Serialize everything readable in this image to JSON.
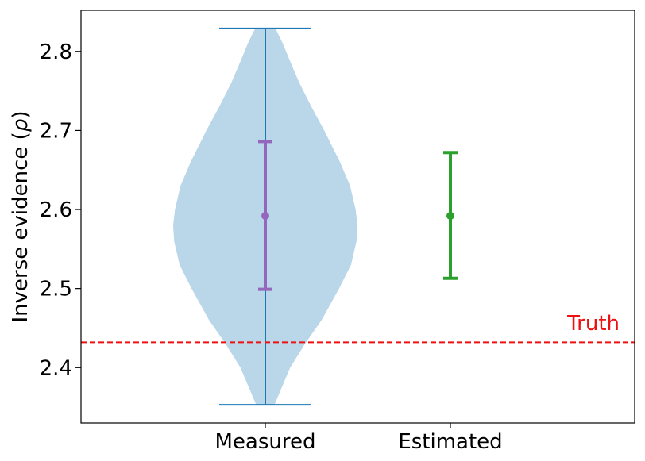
{
  "chart_data": {
    "type": "violin",
    "ylabel_main": "Inverse evidence (",
    "ylabel_symbol": "ρ",
    "ylabel_close": ")",
    "categories": [
      "Measured",
      "Estimated"
    ],
    "ylim": [
      2.33,
      2.852
    ],
    "yticks": [
      "2.4",
      "2.5",
      "2.6",
      "2.7",
      "2.8"
    ],
    "ytick_values": [
      2.4,
      2.5,
      2.6,
      2.7,
      2.8
    ],
    "grid": false,
    "violin": {
      "category": "Measured",
      "min": 2.353,
      "max": 2.829,
      "color": "#1f77b4",
      "fill_color": "#bad6e9",
      "density_half_width": [
        [
          2.353,
          0.1
        ],
        [
          2.37,
          0.16
        ],
        [
          2.4,
          0.27
        ],
        [
          2.43,
          0.43
        ],
        [
          2.46,
          0.61
        ],
        [
          2.5,
          0.8
        ],
        [
          2.53,
          0.93
        ],
        [
          2.56,
          0.99
        ],
        [
          2.58,
          1.0
        ],
        [
          2.6,
          0.98
        ],
        [
          2.63,
          0.92
        ],
        [
          2.66,
          0.81
        ],
        [
          2.7,
          0.64
        ],
        [
          2.73,
          0.5
        ],
        [
          2.76,
          0.37
        ],
        [
          2.79,
          0.26
        ],
        [
          2.81,
          0.19
        ],
        [
          2.829,
          0.11
        ]
      ]
    },
    "series": [
      {
        "category": "Measured",
        "mean": 2.592,
        "lower": 2.499,
        "upper": 2.686,
        "color": "#9467bd"
      },
      {
        "category": "Estimated",
        "mean": 2.592,
        "lower": 2.513,
        "upper": 2.672,
        "color": "#2ca02c"
      }
    ],
    "reference_line": {
      "label": "Truth",
      "value": 2.432,
      "color": "#ee1111",
      "style": "dashed"
    }
  }
}
